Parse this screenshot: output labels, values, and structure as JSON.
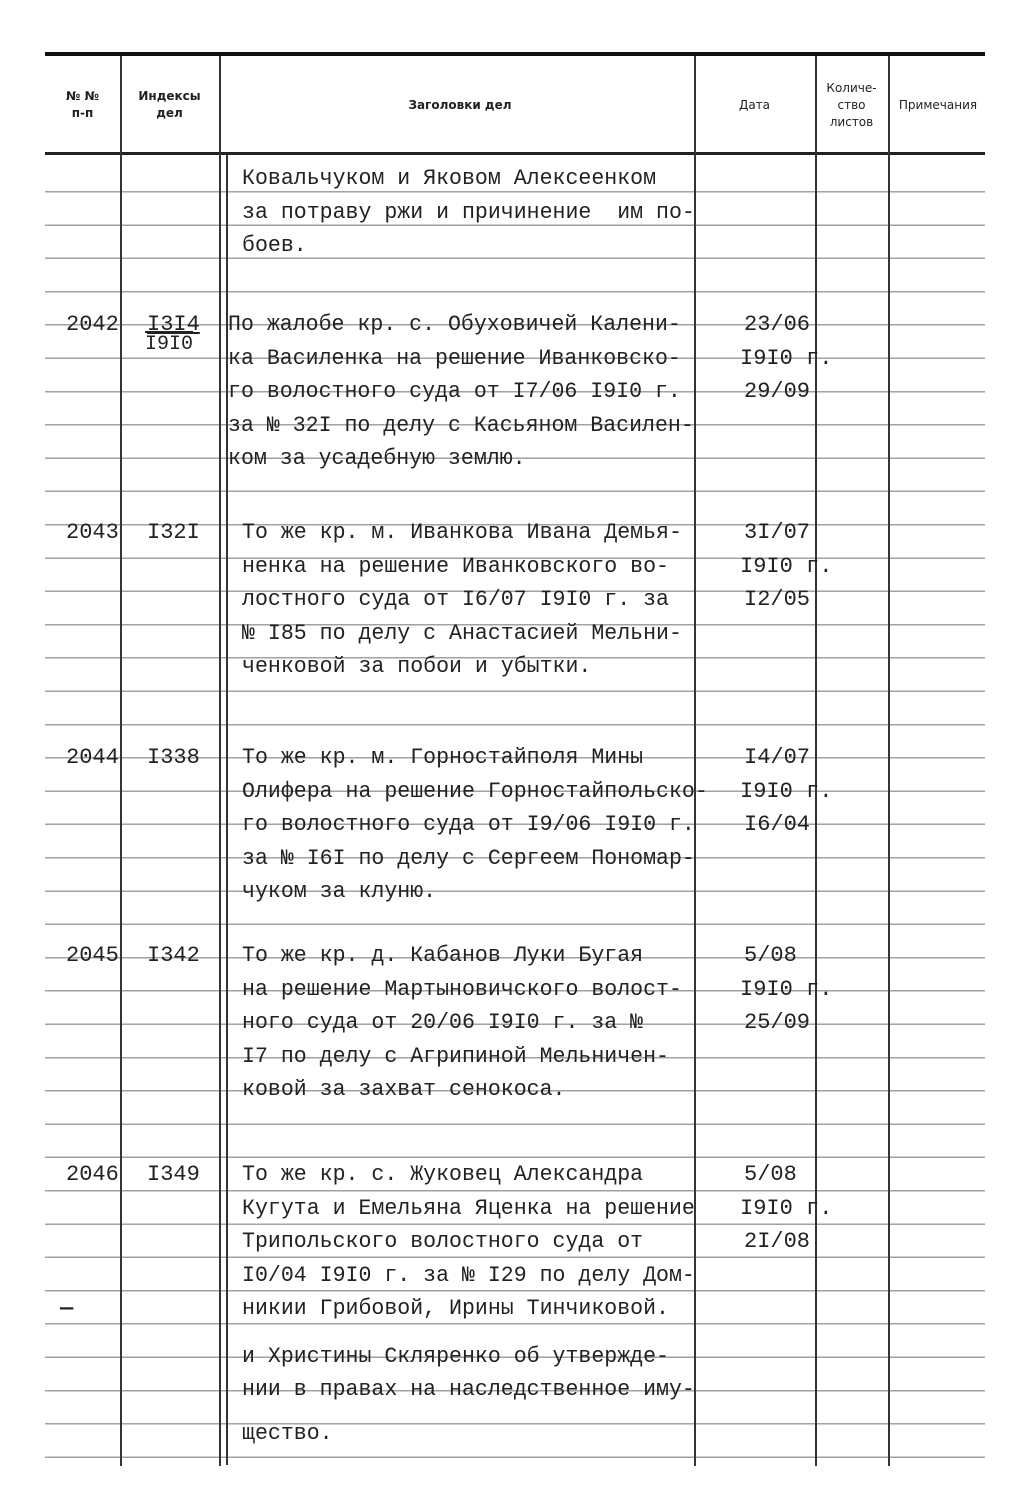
{
  "header": {
    "col_number": "№ №\nп-п",
    "col_index": "Индексы\nдел",
    "col_title": "Заголовки дел",
    "col_date": "Дата",
    "col_sheets": "Количе-\nство\nлистов",
    "col_notes": "Примечания"
  },
  "records": [
    {
      "number": "",
      "index": "",
      "index_year": "",
      "title_lines": [
        "Ковальчуком и Яковом Алексеенком",
        "за потраву ржи и причинение  им по-",
        "боев."
      ],
      "date_lines": []
    },
    {
      "number": "2042",
      "index": "I3I4",
      "index_year": "I9I0",
      "title_lines": [
        "По жалобе кр. с. Обуховичей Калени-",
        "ка Василенка на решение Иванковско-",
        "го волостного суда от I7/06 I9I0 г.",
        "за № 32I по делу с Касьяном Василен-",
        "ком за усадебную землю."
      ],
      "date_lines": [
        "23/06",
        "I9I0 г.",
        "29/09"
      ]
    },
    {
      "number": "2043",
      "index": "I32I",
      "index_year": "",
      "title_lines": [
        "То же кр. м. Иванкова Ивана Демья-",
        "ненка на решение Иванковского во-",
        "лостного суда от I6/07 I9I0 г. за",
        "№ I85 по делу с Анастасией Мельни-",
        "ченковой за побои и убытки."
      ],
      "date_lines": [
        "3I/07",
        "I9I0 г.",
        "I2/05"
      ]
    },
    {
      "number": "2044",
      "index": "I338",
      "index_year": "",
      "title_lines": [
        "То же кр. м. Горностайполя Мины",
        "Олифера на решение Горностайпольско-",
        "го волостного суда от I9/06 I9I0 г.",
        "за № I6I по делу с Сергеем Пономар-",
        "чуком за клуню."
      ],
      "date_lines": [
        "I4/07",
        "I9I0 г.",
        "I6/04"
      ]
    },
    {
      "number": "2045",
      "index": "I342",
      "index_year": "",
      "title_lines": [
        "То же кр. д. Кабанов Луки Бугая",
        "на решение Мартыновичского волост-",
        "ного суда от 20/06 I9I0 г. за №",
        "I7 по делу с Агрипиной Мельничен-",
        "ковой за захват сенокоса."
      ],
      "date_lines": [
        "5/08",
        "I9I0 г.",
        "25/09"
      ]
    },
    {
      "number": "2046",
      "index": "I349",
      "index_year": "",
      "title_lines": [
        "То же кр. с. Жуковец Александра",
        "Кугута и Емельяна Яценка на решение",
        "Трипольского волостного суда от",
        "I0/04 I9I0 г. за № I29 по делу Дом-",
        "никии Грибовой, Ирины Тинчиковой.",
        "и Христины Скляренко об утвержде-",
        "нии в правах на наследственное иму-",
        "щество."
      ],
      "date_lines": [
        "5/08",
        "I9I0 г.",
        "2I/08"
      ],
      "continuation_mark": "—"
    }
  ]
}
